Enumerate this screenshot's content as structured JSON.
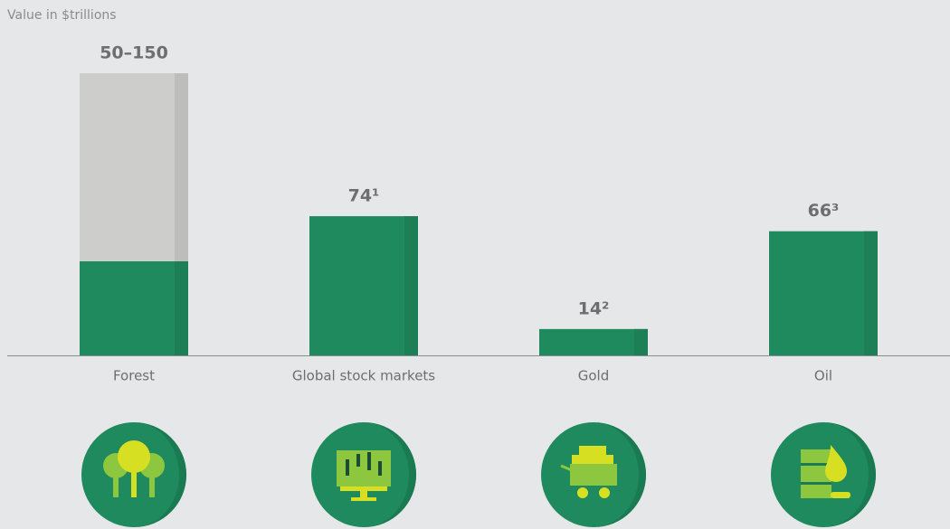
{
  "chart_data": {
    "type": "bar",
    "stacked": true,
    "y_label": "Value in $trillions",
    "categories": [
      "Forest",
      "Global stock markets",
      "Gold",
      "Oil"
    ],
    "series": [
      {
        "color": "#1e8a5e",
        "values": [
          50,
          74,
          14,
          66
        ]
      },
      {
        "color": "#cdcdcc",
        "values": [
          100,
          null,
          null,
          null
        ]
      }
    ],
    "value_labels": [
      "50–150",
      "74¹",
      "14²",
      "66³"
    ],
    "ylim": [
      0,
      150
    ]
  }
}
